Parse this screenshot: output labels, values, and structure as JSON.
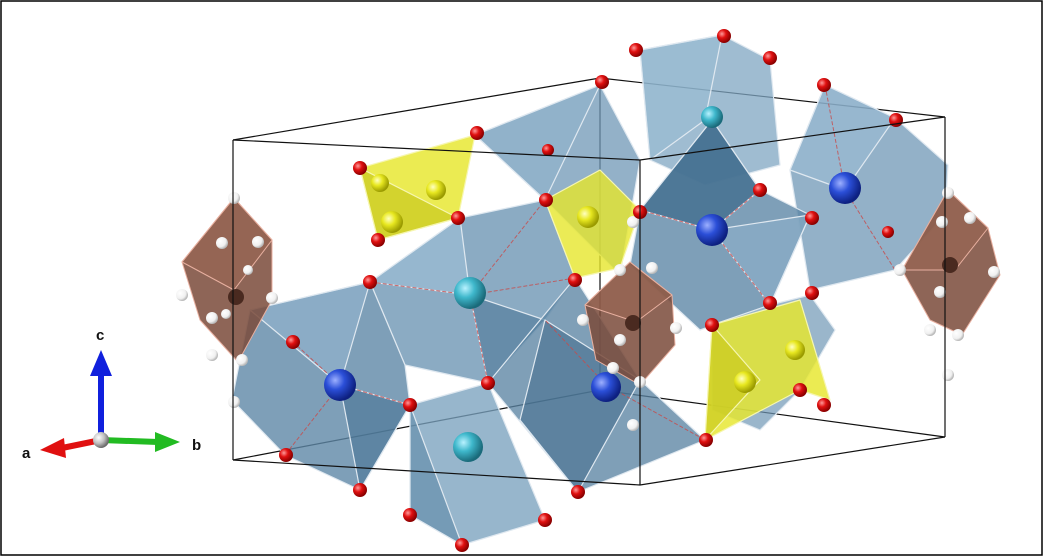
{
  "axes": {
    "a_label": "a",
    "b_label": "b",
    "c_label": "c",
    "a_color": "#e01010",
    "b_color": "#22bb22",
    "c_color": "#1020dd",
    "origin_color": "#c0c0c0"
  },
  "legend_colors": {
    "oxygen": "#e01010",
    "hydrogen": "#ffffff",
    "polyhedron_large": "#5f8fae",
    "polyhedron_small_yellow": "#e8e830",
    "polyhedron_water_cluster": "#7a4a3a",
    "atom_blue": "#2b4fd8",
    "atom_cyan": "#3fb8cc",
    "atom_yellow": "#e8e820",
    "cell_edge": "#000000",
    "frame_border": "#000000"
  }
}
